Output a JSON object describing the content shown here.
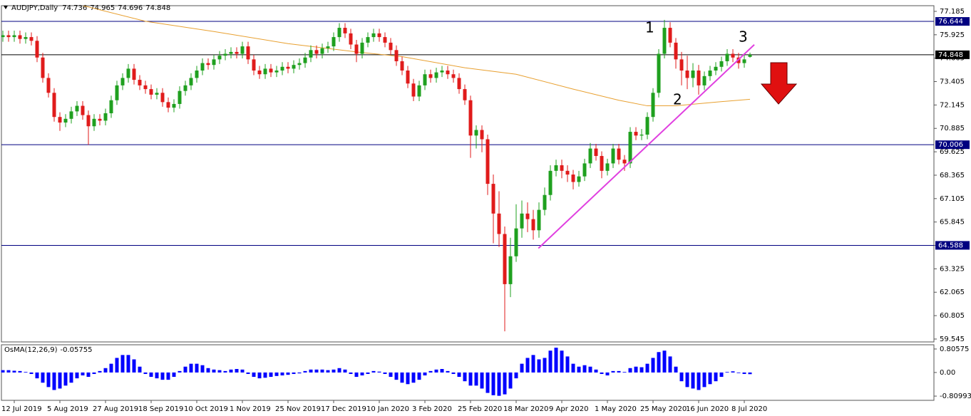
{
  "chart_data": {
    "type": "candlestick",
    "symbol": "AUDJPY,Daily",
    "categories": [
      null,
      null,
      "12 Jul 2019",
      null,
      null,
      null,
      null,
      null,
      null,
      null,
      "5 Aug 2019",
      null,
      null,
      null,
      null,
      null,
      null,
      null,
      "27 Aug 2019",
      null,
      null,
      null,
      null,
      null,
      null,
      null,
      "18 Sep 2019",
      null,
      null,
      null,
      null,
      null,
      null,
      null,
      "10 Oct 2019",
      null,
      null,
      null,
      null,
      null,
      null,
      null,
      "1 Nov 2019",
      null,
      null,
      null,
      null,
      null,
      null,
      null,
      "25 Nov 2019",
      null,
      null,
      null,
      null,
      null,
      null,
      null,
      "17 Dec 2019",
      null,
      null,
      null,
      null,
      null,
      null,
      null,
      "10 Jan 2020",
      null,
      null,
      null,
      null,
      null,
      null,
      null,
      "3 Feb 2020",
      null,
      null,
      null,
      null,
      null,
      null,
      null,
      "25 Feb 2020",
      null,
      null,
      null,
      null,
      null,
      null,
      null,
      "18 Mar 2020",
      null,
      null,
      null,
      null,
      null,
      null,
      null,
      "9 Apr 2020",
      null,
      null,
      null,
      null,
      null,
      null,
      null,
      "1 May 2020",
      null,
      null,
      null,
      null,
      null,
      null,
      null,
      "25 May 2020",
      null,
      null,
      null,
      null,
      null,
      null,
      null,
      "16 Jun 2020",
      null,
      null,
      null,
      null,
      null,
      null,
      null,
      "8 Jul 2020",
      null
    ],
    "candles": [
      [
        75.8,
        76.15,
        75.55,
        75.9
      ],
      [
        75.9,
        76.15,
        75.55,
        75.8
      ],
      [
        75.8,
        76.15,
        75.55,
        75.9
      ],
      [
        75.9,
        76.15,
        75.45,
        75.7
      ],
      [
        75.7,
        76.05,
        75.45,
        75.8
      ],
      [
        75.8,
        76.05,
        75.35,
        75.6
      ],
      [
        75.6,
        75.85,
        74.45,
        74.7
      ],
      [
        74.7,
        74.95,
        73.35,
        73.6
      ],
      [
        73.6,
        73.85,
        72.55,
        72.8
      ],
      [
        72.8,
        73.05,
        71.25,
        71.5
      ],
      [
        71.5,
        71.75,
        70.75,
        71.2
      ],
      [
        71.2,
        71.65,
        70.95,
        71.4
      ],
      [
        71.4,
        72.05,
        71.15,
        71.8
      ],
      [
        71.8,
        72.35,
        71.55,
        72.1
      ],
      [
        72.1,
        72.35,
        71.35,
        71.6
      ],
      [
        71.6,
        71.85,
        70.0,
        71.0
      ],
      [
        71.0,
        71.65,
        70.75,
        71.4
      ],
      [
        71.4,
        71.65,
        71.05,
        71.3
      ],
      [
        71.3,
        71.95,
        71.05,
        71.7
      ],
      [
        71.7,
        72.65,
        71.45,
        72.4
      ],
      [
        72.4,
        73.45,
        72.15,
        73.2
      ],
      [
        73.2,
        73.85,
        72.95,
        73.6
      ],
      [
        73.6,
        74.35,
        73.35,
        74.1
      ],
      [
        74.1,
        74.35,
        73.25,
        73.5
      ],
      [
        73.5,
        73.75,
        72.95,
        73.2
      ],
      [
        73.2,
        73.45,
        72.75,
        73.0
      ],
      [
        73.0,
        73.25,
        72.45,
        72.7
      ],
      [
        72.7,
        73.05,
        72.45,
        72.8
      ],
      [
        72.8,
        73.05,
        72.05,
        72.3
      ],
      [
        72.3,
        72.55,
        71.75,
        72.0
      ],
      [
        72.0,
        72.45,
        71.75,
        72.2
      ],
      [
        72.2,
        73.15,
        71.95,
        72.9
      ],
      [
        72.9,
        73.45,
        72.65,
        73.2
      ],
      [
        73.2,
        73.85,
        72.95,
        73.6
      ],
      [
        73.6,
        74.25,
        73.35,
        74.0
      ],
      [
        74.0,
        74.65,
        73.75,
        74.4
      ],
      [
        74.4,
        74.65,
        74.05,
        74.3
      ],
      [
        74.3,
        74.85,
        74.05,
        74.6
      ],
      [
        74.6,
        75.05,
        74.35,
        74.8
      ],
      [
        74.8,
        75.15,
        74.55,
        74.9
      ],
      [
        74.9,
        75.25,
        74.65,
        75.0
      ],
      [
        75.0,
        75.25,
        74.65,
        74.9
      ],
      [
        74.9,
        75.55,
        74.65,
        75.3
      ],
      [
        75.3,
        75.55,
        74.35,
        74.6
      ],
      [
        74.6,
        74.85,
        73.75,
        74.0
      ],
      [
        74.0,
        74.25,
        73.55,
        73.8
      ],
      [
        73.8,
        74.35,
        73.55,
        74.1
      ],
      [
        74.1,
        74.35,
        73.65,
        73.9
      ],
      [
        73.9,
        74.25,
        73.65,
        74.0
      ],
      [
        74.0,
        74.45,
        73.75,
        74.2
      ],
      [
        74.2,
        74.45,
        73.85,
        74.1
      ],
      [
        74.1,
        74.55,
        73.85,
        74.3
      ],
      [
        74.3,
        74.65,
        74.05,
        74.4
      ],
      [
        74.4,
        74.95,
        74.15,
        74.7
      ],
      [
        74.7,
        75.35,
        74.45,
        75.1
      ],
      [
        75.1,
        75.35,
        74.65,
        74.9
      ],
      [
        74.9,
        75.45,
        74.65,
        75.2
      ],
      [
        75.2,
        75.55,
        74.95,
        75.3
      ],
      [
        75.3,
        76.05,
        75.05,
        75.8
      ],
      [
        75.8,
        76.55,
        75.55,
        76.3
      ],
      [
        76.3,
        76.55,
        75.75,
        76.0
      ],
      [
        76.0,
        76.25,
        75.15,
        75.4
      ],
      [
        75.4,
        75.65,
        74.45,
        74.9
      ],
      [
        74.9,
        75.75,
        74.65,
        75.5
      ],
      [
        75.5,
        76.05,
        75.25,
        75.8
      ],
      [
        75.8,
        76.25,
        75.55,
        76.0
      ],
      [
        76.0,
        76.25,
        75.55,
        75.8
      ],
      [
        75.8,
        76.05,
        75.25,
        75.5
      ],
      [
        75.5,
        75.75,
        74.85,
        75.1
      ],
      [
        75.1,
        75.35,
        74.25,
        74.5
      ],
      [
        74.5,
        74.75,
        73.75,
        74.0
      ],
      [
        74.0,
        74.25,
        73.05,
        73.3
      ],
      [
        73.3,
        73.55,
        72.35,
        72.6
      ],
      [
        72.6,
        73.45,
        72.35,
        73.2
      ],
      [
        73.2,
        74.05,
        72.95,
        73.8
      ],
      [
        73.8,
        74.05,
        73.35,
        73.6
      ],
      [
        73.6,
        74.15,
        73.35,
        73.9
      ],
      [
        73.9,
        74.25,
        73.65,
        74.0
      ],
      [
        74.0,
        74.25,
        73.55,
        73.8
      ],
      [
        73.8,
        74.05,
        73.35,
        73.6
      ],
      [
        73.6,
        73.85,
        72.75,
        73.0
      ],
      [
        73.0,
        73.25,
        72.15,
        72.4
      ],
      [
        72.4,
        72.65,
        69.3,
        70.5
      ],
      [
        70.5,
        71.05,
        69.8,
        70.8
      ],
      [
        70.8,
        71.05,
        69.6,
        70.3
      ],
      [
        70.3,
        70.55,
        67.3,
        67.9
      ],
      [
        67.9,
        68.4,
        64.7,
        66.3
      ],
      [
        66.3,
        67.5,
        64.5,
        65.2
      ],
      [
        65.2,
        65.6,
        59.96,
        62.5
      ],
      [
        62.5,
        65.0,
        61.8,
        64.0
      ],
      [
        64.0,
        66.8,
        63.7,
        65.5
      ],
      [
        65.5,
        67.0,
        65.0,
        66.3
      ],
      [
        66.3,
        66.9,
        65.3,
        66.0
      ],
      [
        66.0,
        66.5,
        64.9,
        65.4
      ],
      [
        65.4,
        66.9,
        65.0,
        66.5
      ],
      [
        66.5,
        67.7,
        66.2,
        67.3
      ],
      [
        67.3,
        68.9,
        67.0,
        68.6
      ],
      [
        68.6,
        69.2,
        68.3,
        68.9
      ],
      [
        68.9,
        69.2,
        68.2,
        68.6
      ],
      [
        68.6,
        68.9,
        68.0,
        68.4
      ],
      [
        68.4,
        68.65,
        67.6,
        68.0
      ],
      [
        68.0,
        68.6,
        67.75,
        68.3
      ],
      [
        68.3,
        69.25,
        68.05,
        69.0
      ],
      [
        69.0,
        70.1,
        68.75,
        69.8
      ],
      [
        69.8,
        70.05,
        69.15,
        69.4
      ],
      [
        69.4,
        69.65,
        68.2,
        68.6
      ],
      [
        68.6,
        69.25,
        68.35,
        69.0
      ],
      [
        69.0,
        70.05,
        68.75,
        69.8
      ],
      [
        69.8,
        70.05,
        68.95,
        69.2
      ],
      [
        69.2,
        69.45,
        68.6,
        69.0
      ],
      [
        69.0,
        70.95,
        68.75,
        70.7
      ],
      [
        70.7,
        70.95,
        70.25,
        70.5
      ],
      [
        70.5,
        70.85,
        70.25,
        70.55
      ],
      [
        70.55,
        71.75,
        70.3,
        71.5
      ],
      [
        71.5,
        73.05,
        71.25,
        72.8
      ],
      [
        72.8,
        75.15,
        72.55,
        74.9
      ],
      [
        74.9,
        76.73,
        74.65,
        76.3
      ],
      [
        76.3,
        76.6,
        75.25,
        75.5
      ],
      [
        75.5,
        75.75,
        74.1,
        74.6
      ],
      [
        74.6,
        75.0,
        73.2,
        74.0
      ],
      [
        74.0,
        74.8,
        73.0,
        73.6
      ],
      [
        73.6,
        74.4,
        73.1,
        74.0
      ],
      [
        74.0,
        74.3,
        72.7,
        73.2
      ],
      [
        73.2,
        73.95,
        72.95,
        73.7
      ],
      [
        73.7,
        74.25,
        73.45,
        74.0
      ],
      [
        74.0,
        74.45,
        73.75,
        74.2
      ],
      [
        74.2,
        74.75,
        73.95,
        74.5
      ],
      [
        74.5,
        75.15,
        74.25,
        74.9
      ],
      [
        74.9,
        75.15,
        74.45,
        74.7
      ],
      [
        74.7,
        74.95,
        74.1,
        74.4
      ],
      [
        74.4,
        74.85,
        74.15,
        74.6
      ],
      [
        74.736,
        74.965,
        74.696,
        74.848
      ]
    ],
    "up_color": "#1fa01f",
    "down_color": "#e01b1b",
    "ylim": [
      59.39,
      77.49
    ],
    "yticks": [
      77.185,
      75.925,
      74.665,
      73.405,
      72.145,
      70.885,
      69.625,
      68.365,
      67.105,
      65.845,
      64.585,
      63.325,
      62.065,
      60.805,
      59.545
    ],
    "levels": [
      76.644,
      70.006,
      64.588
    ],
    "level_color": "#000080",
    "current_price": 74.848,
    "ma": {
      "x": [
        14,
        25,
        37,
        50,
        62,
        70,
        81,
        90,
        100,
        108,
        113,
        118,
        125,
        131
      ],
      "values": [
        77.5,
        76.65,
        76.1,
        75.45,
        75.0,
        74.75,
        74.15,
        73.8,
        73.0,
        72.4,
        72.1,
        72.1,
        72.3,
        72.45
      ],
      "color": "#e8a030"
    },
    "trendline": {
      "x": [
        93.9,
        131.75
      ],
      "values": [
        64.43,
        75.39
      ],
      "color": "#e040e0"
    },
    "annotations": [
      "1",
      "2",
      "3"
    ],
    "osma": {
      "title": "OsMA(12,26,9)",
      "color": "#0000ff",
      "ylim": [
        -0.955,
        0.951
      ],
      "yticks": [
        0.80575,
        {
          "value": 0,
          "label": "0.00"
        },
        -0.80993
      ],
      "values": [
        0.08,
        0.08,
        0.06,
        0.05,
        0.02,
        -0.05,
        -0.2,
        -0.35,
        -0.5,
        -0.6,
        -0.55,
        -0.45,
        -0.35,
        -0.2,
        -0.1,
        -0.15,
        -0.05,
        0.05,
        0.15,
        0.3,
        0.5,
        0.6,
        0.6,
        0.45,
        0.2,
        -0.05,
        -0.15,
        -0.2,
        -0.25,
        -0.25,
        -0.15,
        0.05,
        0.2,
        0.3,
        0.3,
        0.25,
        0.15,
        0.1,
        0.08,
        0.05,
        0.1,
        0.12,
        0.1,
        -0.05,
        -0.15,
        -0.2,
        -0.18,
        -0.15,
        -0.12,
        -0.1,
        -0.08,
        -0.05,
        -0.03,
        0.05,
        0.1,
        0.1,
        0.1,
        0.08,
        0.1,
        0.15,
        0.1,
        -0.05,
        -0.15,
        -0.1,
        -0.05,
        0.05,
        0.03,
        -0.05,
        -0.15,
        -0.25,
        -0.35,
        -0.4,
        -0.35,
        -0.25,
        -0.1,
        0.05,
        0.1,
        0.12,
        0.05,
        -0.05,
        -0.15,
        -0.3,
        -0.45,
        -0.45,
        -0.55,
        -0.7,
        -0.78,
        -0.8,
        -0.75,
        -0.55,
        -0.2,
        0.3,
        0.5,
        0.6,
        0.45,
        0.5,
        0.75,
        0.85,
        0.75,
        0.55,
        0.3,
        0.2,
        0.25,
        0.2,
        0.1,
        -0.05,
        -0.1,
        0.05,
        0.05,
        0.02,
        0.15,
        0.2,
        0.18,
        0.3,
        0.5,
        0.7,
        0.75,
        0.55,
        0.2,
        -0.3,
        -0.5,
        -0.55,
        -0.6,
        -0.5,
        -0.4,
        -0.3,
        -0.15,
        0.02,
        0.04,
        -0.02,
        -0.05,
        -0.05755
      ]
    }
  }
}
